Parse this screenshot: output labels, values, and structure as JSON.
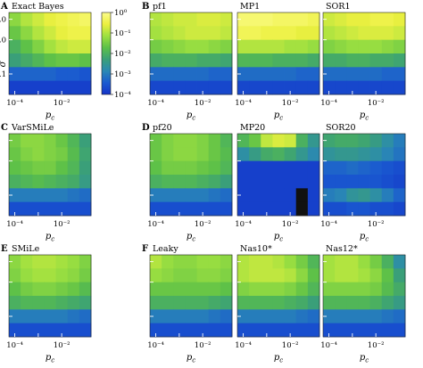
{
  "colorbar": {
    "ticks": [
      {
        "label": "10⁰",
        "exp": 0
      },
      {
        "label": "10⁻¹",
        "exp": -1
      },
      {
        "label": "10⁻²",
        "exp": -2
      },
      {
        "label": "10⁻³",
        "exp": -3
      },
      {
        "label": "10⁻⁴",
        "exp": -4
      }
    ],
    "colormap": [
      "#1432c8",
      "#1a5ad0",
      "#2a88b4",
      "#3aa078",
      "#5cc048",
      "#9ee040",
      "#ecf040",
      "#fcfc8c"
    ]
  },
  "axes": {
    "x_ticks": [
      {
        "label": "10⁻⁴",
        "col": 0.5
      },
      {
        "label": "10⁻²",
        "col": 4.5
      }
    ],
    "x_label_base": "p",
    "x_label_sub": "c",
    "y_label": "σ",
    "y_ticks": [
      {
        "label": "5.0",
        "row": 0.5
      },
      {
        "label": "1.0",
        "row": 2.0
      },
      {
        "label": "0.1",
        "row": 4.5
      }
    ]
  },
  "chart_data": [
    {
      "type": "heatmap",
      "letter": "A",
      "title": "Exact Bayes",
      "rows": 6,
      "cols": 7,
      "values": [
        [
          -1.3,
          -1.0,
          -0.8,
          -0.6,
          -0.5,
          -0.4,
          -0.3
        ],
        [
          -1.6,
          -1.3,
          -1.0,
          -0.8,
          -0.6,
          -0.5,
          -0.5
        ],
        [
          -2.0,
          -1.7,
          -1.4,
          -1.1,
          -0.9,
          -0.8,
          -0.8
        ],
        [
          -2.3,
          -2.1,
          -1.9,
          -1.7,
          -1.6,
          -1.6,
          -1.7
        ],
        [
          -3.3,
          -3.3,
          -3.3,
          -3.3,
          -3.4,
          -3.4,
          -3.5
        ],
        [
          -3.8,
          -3.8,
          -3.8,
          -3.8,
          -3.8,
          -3.8,
          -3.8
        ]
      ]
    },
    {
      "type": "heatmap",
      "letter": "B",
      "title": "pf1",
      "rows": 6,
      "cols": 7,
      "values": [
        [
          -1.0,
          -0.9,
          -0.8,
          -0.8,
          -0.7,
          -0.7,
          -0.8
        ],
        [
          -1.1,
          -1.0,
          -0.9,
          -0.8,
          -0.8,
          -0.8,
          -0.9
        ],
        [
          -1.5,
          -1.4,
          -1.3,
          -1.2,
          -1.2,
          -1.3,
          -1.4
        ],
        [
          -2.1,
          -2.0,
          -2.0,
          -2.0,
          -2.1,
          -2.1,
          -2.2
        ],
        [
          -3.2,
          -3.2,
          -3.2,
          -3.2,
          -3.2,
          -3.3,
          -3.3
        ],
        [
          -3.7,
          -3.7,
          -3.7,
          -3.7,
          -3.7,
          -3.7,
          -3.7
        ]
      ]
    },
    {
      "type": "heatmap",
      "letter": "",
      "title": "MP1",
      "rows": 6,
      "cols": 7,
      "values": [
        [
          -0.2,
          -0.2,
          -0.2,
          -0.3,
          -0.3,
          -0.3,
          -0.4
        ],
        [
          -0.4,
          -0.4,
          -0.5,
          -0.5,
          -0.5,
          -0.6,
          -0.6
        ],
        [
          -1.0,
          -1.0,
          -1.0,
          -1.0,
          -1.1,
          -1.1,
          -1.2
        ],
        [
          -1.9,
          -1.9,
          -1.9,
          -2.0,
          -2.0,
          -2.0,
          -2.1
        ],
        [
          -3.2,
          -3.2,
          -3.2,
          -3.2,
          -3.2,
          -3.3,
          -3.3
        ],
        [
          -3.7,
          -3.7,
          -3.7,
          -3.7,
          -3.7,
          -3.7,
          -3.7
        ]
      ]
    },
    {
      "type": "heatmap",
      "letter": "",
      "title": "SOR1",
      "rows": 6,
      "cols": 7,
      "values": [
        [
          -0.8,
          -0.7,
          -0.6,
          -0.6,
          -0.5,
          -0.5,
          -0.6
        ],
        [
          -1.0,
          -0.9,
          -0.8,
          -0.7,
          -0.7,
          -0.7,
          -0.8
        ],
        [
          -1.4,
          -1.3,
          -1.2,
          -1.2,
          -1.2,
          -1.3,
          -1.4
        ],
        [
          -2.1,
          -2.1,
          -2.0,
          -2.0,
          -2.1,
          -2.1,
          -2.2
        ],
        [
          -3.2,
          -3.2,
          -3.2,
          -3.2,
          -3.2,
          -3.3,
          -3.3
        ],
        [
          -3.7,
          -3.7,
          -3.7,
          -3.7,
          -3.7,
          -3.7,
          -3.7
        ]
      ]
    },
    {
      "type": "heatmap",
      "letter": "C",
      "title": "VarSMiLe",
      "rows": 6,
      "cols": 7,
      "values": [
        [
          -1.5,
          -1.3,
          -1.3,
          -1.4,
          -1.6,
          -1.9,
          -2.3
        ],
        [
          -1.6,
          -1.4,
          -1.3,
          -1.4,
          -1.5,
          -1.8,
          -2.2
        ],
        [
          -1.7,
          -1.6,
          -1.5,
          -1.5,
          -1.7,
          -1.9,
          -2.3
        ],
        [
          -2.0,
          -1.9,
          -1.8,
          -1.9,
          -2.0,
          -2.1,
          -2.4
        ],
        [
          -3.0,
          -3.0,
          -3.0,
          -3.0,
          -3.0,
          -3.1,
          -3.2
        ],
        [
          -3.6,
          -3.6,
          -3.6,
          -3.6,
          -3.6,
          -3.6,
          -3.6
        ]
      ]
    },
    {
      "type": "heatmap",
      "letter": "D",
      "title": "pf20",
      "rows": 6,
      "cols": 7,
      "values": [
        [
          -1.6,
          -1.4,
          -1.3,
          -1.3,
          -1.4,
          -1.6,
          -1.9
        ],
        [
          -1.6,
          -1.4,
          -1.3,
          -1.3,
          -1.4,
          -1.6,
          -1.8
        ],
        [
          -1.7,
          -1.5,
          -1.5,
          -1.5,
          -1.6,
          -1.7,
          -1.9
        ],
        [
          -2.0,
          -1.9,
          -1.9,
          -1.9,
          -2.0,
          -2.1,
          -2.3
        ],
        [
          -3.0,
          -3.0,
          -3.0,
          -3.0,
          -3.0,
          -3.1,
          -3.2
        ],
        [
          -3.6,
          -3.6,
          -3.6,
          -3.6,
          -3.6,
          -3.6,
          -3.6
        ]
      ]
    },
    {
      "type": "heatmap",
      "letter": "",
      "title": "MP20",
      "rows": 6,
      "cols": 7,
      "values": [
        [
          -1.9,
          -1.6,
          -0.9,
          -0.7,
          -0.8,
          -2.0,
          -2.5
        ],
        [
          -2.7,
          -2.4,
          -2.1,
          -2.0,
          -2.2,
          -2.5,
          -2.8
        ],
        [
          -3.8,
          -3.8,
          -3.8,
          -3.8,
          -3.8,
          -3.8,
          -3.8
        ],
        [
          -3.8,
          -3.8,
          -3.8,
          -3.8,
          -3.8,
          -3.8,
          -3.8
        ],
        [
          -3.8,
          -3.8,
          -3.8,
          -3.8,
          -3.8,
          null,
          -3.8
        ],
        [
          -3.8,
          -3.8,
          -3.8,
          -3.8,
          -3.8,
          null,
          -3.8
        ]
      ]
    },
    {
      "type": "heatmap",
      "letter": "",
      "title": "SOR20",
      "rows": 6,
      "cols": 7,
      "values": [
        [
          -2.2,
          -2.1,
          -2.1,
          -2.2,
          -2.4,
          -2.7,
          -3.0
        ],
        [
          -2.6,
          -2.5,
          -2.5,
          -2.6,
          -2.7,
          -2.9,
          -3.1
        ],
        [
          -3.3,
          -3.3,
          -3.2,
          -3.3,
          -3.4,
          -3.5,
          -3.6
        ],
        [
          -3.5,
          -3.5,
          -3.5,
          -3.5,
          -3.5,
          -3.6,
          -3.7
        ],
        [
          -3.0,
          -2.9,
          -2.6,
          -2.5,
          -2.7,
          -3.0,
          -3.3
        ],
        [
          -3.6,
          -3.6,
          -3.5,
          -3.5,
          -3.6,
          -3.6,
          -3.7
        ]
      ]
    },
    {
      "type": "heatmap",
      "letter": "E",
      "title": "SMiLe",
      "rows": 6,
      "cols": 7,
      "values": [
        [
          -1.3,
          -1.1,
          -1.0,
          -1.0,
          -1.1,
          -1.2,
          -1.4
        ],
        [
          -1.4,
          -1.2,
          -1.1,
          -1.1,
          -1.2,
          -1.3,
          -1.5
        ],
        [
          -1.7,
          -1.5,
          -1.4,
          -1.4,
          -1.5,
          -1.6,
          -1.8
        ],
        [
          -2.0,
          -1.9,
          -1.9,
          -1.9,
          -2.0,
          -2.1,
          -2.2
        ],
        [
          -3.0,
          -3.0,
          -3.0,
          -3.0,
          -3.0,
          -3.1,
          -3.2
        ],
        [
          -3.6,
          -3.6,
          -3.6,
          -3.6,
          -3.6,
          -3.6,
          -3.6
        ]
      ]
    },
    {
      "type": "heatmap",
      "letter": "F",
      "title": "Leaky",
      "rows": 6,
      "cols": 7,
      "values": [
        [
          -1.0,
          -1.2,
          -1.3,
          -1.3,
          -1.2,
          -1.2,
          -1.3
        ],
        [
          -1.2,
          -1.3,
          -1.4,
          -1.4,
          -1.3,
          -1.3,
          -1.4
        ],
        [
          -1.6,
          -1.6,
          -1.6,
          -1.6,
          -1.6,
          -1.6,
          -1.7
        ],
        [
          -2.0,
          -2.0,
          -2.0,
          -2.0,
          -2.0,
          -2.1,
          -2.2
        ],
        [
          -3.0,
          -3.0,
          -3.0,
          -3.0,
          -3.0,
          -3.1,
          -3.2
        ],
        [
          -3.6,
          -3.6,
          -3.6,
          -3.6,
          -3.6,
          -3.6,
          -3.6
        ]
      ]
    },
    {
      "type": "heatmap",
      "letter": "",
      "title": "Nas10*",
      "rows": 6,
      "cols": 7,
      "values": [
        [
          -1.0,
          -0.9,
          -0.9,
          -1.0,
          -1.2,
          -1.5,
          -1.9
        ],
        [
          -1.0,
          -0.9,
          -0.9,
          -0.9,
          -1.0,
          -1.3,
          -1.7
        ],
        [
          -1.4,
          -1.3,
          -1.3,
          -1.3,
          -1.4,
          -1.6,
          -1.9
        ],
        [
          -1.9,
          -1.9,
          -1.9,
          -1.9,
          -2.0,
          -2.1,
          -2.3
        ],
        [
          -3.0,
          -3.0,
          -3.0,
          -3.0,
          -3.0,
          -3.1,
          -3.2
        ],
        [
          -3.6,
          -3.6,
          -3.6,
          -3.6,
          -3.6,
          -3.6,
          -3.6
        ]
      ]
    },
    {
      "type": "heatmap",
      "letter": "",
      "title": "Nas12*",
      "rows": 6,
      "cols": 7,
      "values": [
        [
          -1.1,
          -1.0,
          -1.0,
          -1.2,
          -1.5,
          -2.0,
          -2.7
        ],
        [
          -1.1,
          -1.0,
          -1.0,
          -1.1,
          -1.3,
          -1.7,
          -2.3
        ],
        [
          -1.4,
          -1.4,
          -1.4,
          -1.4,
          -1.5,
          -1.8,
          -2.1
        ],
        [
          -1.9,
          -1.9,
          -1.9,
          -1.9,
          -2.0,
          -2.2,
          -2.4
        ],
        [
          -3.0,
          -3.0,
          -3.0,
          -3.0,
          -3.0,
          -3.1,
          -3.2
        ],
        [
          -3.6,
          -3.6,
          -3.6,
          -3.6,
          -3.6,
          -3.6,
          -3.6
        ]
      ]
    }
  ]
}
